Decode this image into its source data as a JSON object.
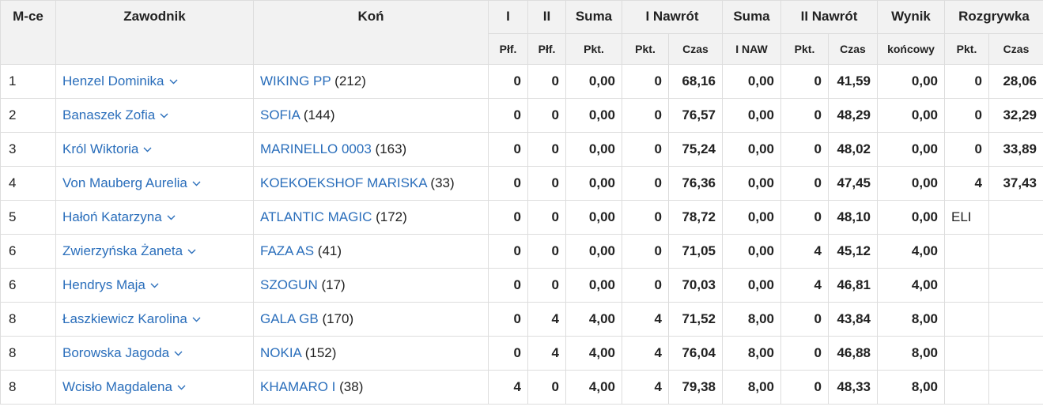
{
  "header": {
    "row1": {
      "pos": "M-ce",
      "rider": "Zawodnik",
      "horse": "Koń",
      "r1": "I",
      "r2": "II",
      "sum": "Suma",
      "jo1": "I Nawrót",
      "sum2": "Suma",
      "jo2": "II Nawrót",
      "result": "Wynik",
      "playoff": "Rozgrywka"
    },
    "row2": {
      "r1": "Płf.",
      "r2": "Płf.",
      "sum": "Pkt.",
      "jo1_pts": "Pkt.",
      "jo1_time": "Czas",
      "sum2": "I NAW",
      "jo2_pts": "Pkt.",
      "jo2_time": "Czas",
      "result": "końcowy",
      "po_pts": "Pkt.",
      "po_time": "Czas"
    }
  },
  "rows": [
    {
      "pos": "1",
      "rider": "Henzel Dominika",
      "horse": "WIKING PP",
      "horse_id": "(212)",
      "r1": "0",
      "r2": "0",
      "sum": "0,00",
      "jo1_pts": "0",
      "jo1_time": "68,16",
      "sum2": "0,00",
      "jo2_pts": "0",
      "jo2_time": "41,59",
      "result": "0,00",
      "po_pts": "0",
      "po_time": "28,06"
    },
    {
      "pos": "2",
      "rider": "Banaszek Zofia",
      "horse": "SOFIA",
      "horse_id": "(144)",
      "r1": "0",
      "r2": "0",
      "sum": "0,00",
      "jo1_pts": "0",
      "jo1_time": "76,57",
      "sum2": "0,00",
      "jo2_pts": "0",
      "jo2_time": "48,29",
      "result": "0,00",
      "po_pts": "0",
      "po_time": "32,29"
    },
    {
      "pos": "3",
      "rider": "Król Wiktoria",
      "horse": "MARINELLO 0003",
      "horse_id": "(163)",
      "r1": "0",
      "r2": "0",
      "sum": "0,00",
      "jo1_pts": "0",
      "jo1_time": "75,24",
      "sum2": "0,00",
      "jo2_pts": "0",
      "jo2_time": "48,02",
      "result": "0,00",
      "po_pts": "0",
      "po_time": "33,89"
    },
    {
      "pos": "4",
      "rider": "Von Mauberg Aurelia",
      "horse": "KOEKOEKSHOF MARISKA",
      "horse_id": "(33)",
      "r1": "0",
      "r2": "0",
      "sum": "0,00",
      "jo1_pts": "0",
      "jo1_time": "76,36",
      "sum2": "0,00",
      "jo2_pts": "0",
      "jo2_time": "47,45",
      "result": "0,00",
      "po_pts": "4",
      "po_time": "37,43"
    },
    {
      "pos": "5",
      "rider": "Hałoń Katarzyna",
      "horse": "ATLANTIC MAGIC",
      "horse_id": "(172)",
      "r1": "0",
      "r2": "0",
      "sum": "0,00",
      "jo1_pts": "0",
      "jo1_time": "78,72",
      "sum2": "0,00",
      "jo2_pts": "0",
      "jo2_time": "48,10",
      "result": "0,00",
      "po_pts": "ELI",
      "po_time": ""
    },
    {
      "pos": "6",
      "rider": "Zwierzyńska Żaneta",
      "horse": "FAZA AS",
      "horse_id": "(41)",
      "r1": "0",
      "r2": "0",
      "sum": "0,00",
      "jo1_pts": "0",
      "jo1_time": "71,05",
      "sum2": "0,00",
      "jo2_pts": "4",
      "jo2_time": "45,12",
      "result": "4,00",
      "po_pts": "",
      "po_time": ""
    },
    {
      "pos": "6",
      "rider": "Hendrys Maja",
      "horse": "SZOGUN",
      "horse_id": "(17)",
      "r1": "0",
      "r2": "0",
      "sum": "0,00",
      "jo1_pts": "0",
      "jo1_time": "70,03",
      "sum2": "0,00",
      "jo2_pts": "4",
      "jo2_time": "46,81",
      "result": "4,00",
      "po_pts": "",
      "po_time": ""
    },
    {
      "pos": "8",
      "rider": "Łaszkiewicz Karolina",
      "horse": "GALA GB",
      "horse_id": "(170)",
      "r1": "0",
      "r2": "4",
      "sum": "4,00",
      "jo1_pts": "4",
      "jo1_time": "71,52",
      "sum2": "8,00",
      "jo2_pts": "0",
      "jo2_time": "43,84",
      "result": "8,00",
      "po_pts": "",
      "po_time": ""
    },
    {
      "pos": "8",
      "rider": "Borowska Jagoda",
      "horse": "NOKIA",
      "horse_id": "(152)",
      "r1": "0",
      "r2": "4",
      "sum": "4,00",
      "jo1_pts": "4",
      "jo1_time": "76,04",
      "sum2": "8,00",
      "jo2_pts": "0",
      "jo2_time": "46,88",
      "result": "8,00",
      "po_pts": "",
      "po_time": ""
    },
    {
      "pos": "8",
      "rider": "Wcisło Magdalena",
      "horse": "KHAMARO I",
      "horse_id": "(38)",
      "r1": "4",
      "r2": "0",
      "sum": "4,00",
      "jo1_pts": "4",
      "jo1_time": "79,38",
      "sum2": "8,00",
      "jo2_pts": "0",
      "jo2_time": "48,33",
      "result": "8,00",
      "po_pts": "",
      "po_time": ""
    }
  ],
  "icons": {
    "rider_menu": "chevron-down-icon"
  },
  "colors": {
    "link": "#2a6ebb",
    "header_bg": "#f2f2f2",
    "border": "#dddddd"
  }
}
